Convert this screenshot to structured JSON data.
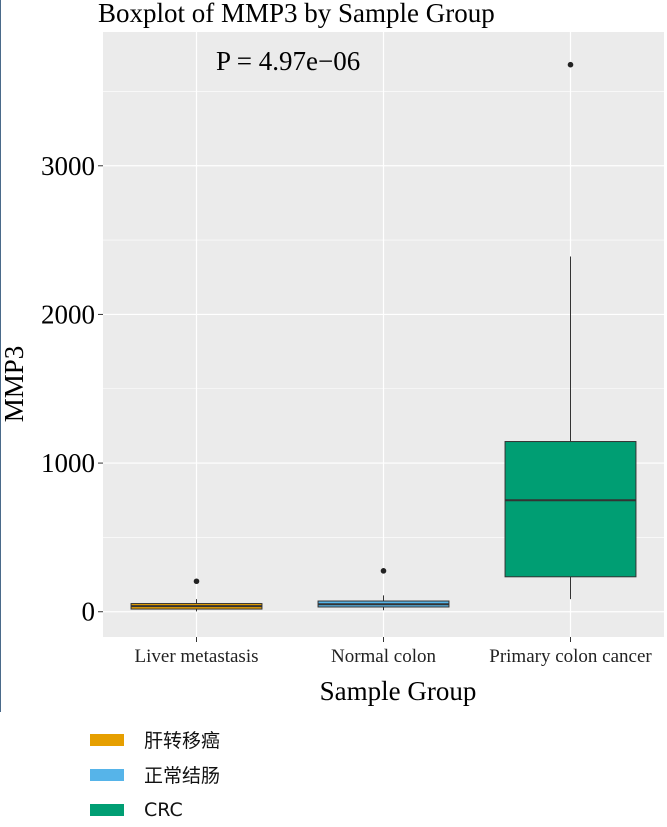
{
  "chart_data": {
    "type": "boxplot",
    "title": "Boxplot of MMP3 by Sample Group",
    "annotation": "P = 4.97e−06",
    "xlabel": "Sample Group",
    "ylabel": "MMP3",
    "ylim": [
      -170,
      3900
    ],
    "yticks": [
      0,
      1000,
      2000,
      3000
    ],
    "categories": [
      "Liver metastasis",
      "Normal colon",
      "Primary colon cancer"
    ],
    "boxes": [
      {
        "category": "Liver metastasis",
        "whisker_low": 2,
        "q1": 18,
        "median": 38,
        "q3": 55,
        "whisker_high": 85,
        "outliers": [
          205
        ],
        "color": "#E69F00"
      },
      {
        "category": "Normal colon",
        "whisker_low": 10,
        "q1": 32,
        "median": 50,
        "q3": 72,
        "whisker_high": 110,
        "outliers": [
          275
        ],
        "color": "#56B4E9"
      },
      {
        "category": "Primary colon cancer",
        "whisker_low": 85,
        "q1": 235,
        "median": 750,
        "q3": 1145,
        "whisker_high": 2390,
        "outliers": [
          3680
        ],
        "color": "#009E73"
      }
    ],
    "legend": {
      "position": "bottom-left",
      "entries": [
        {
          "label": "肝转移癌",
          "color": "#E69F00"
        },
        {
          "label": "正常结肠",
          "color": "#56B4E9"
        },
        {
          "label": "CRC",
          "color": "#009E73"
        }
      ]
    },
    "grid": true,
    "panel_background": "#EBEBEB",
    "grid_color": "#FFFFFF"
  }
}
